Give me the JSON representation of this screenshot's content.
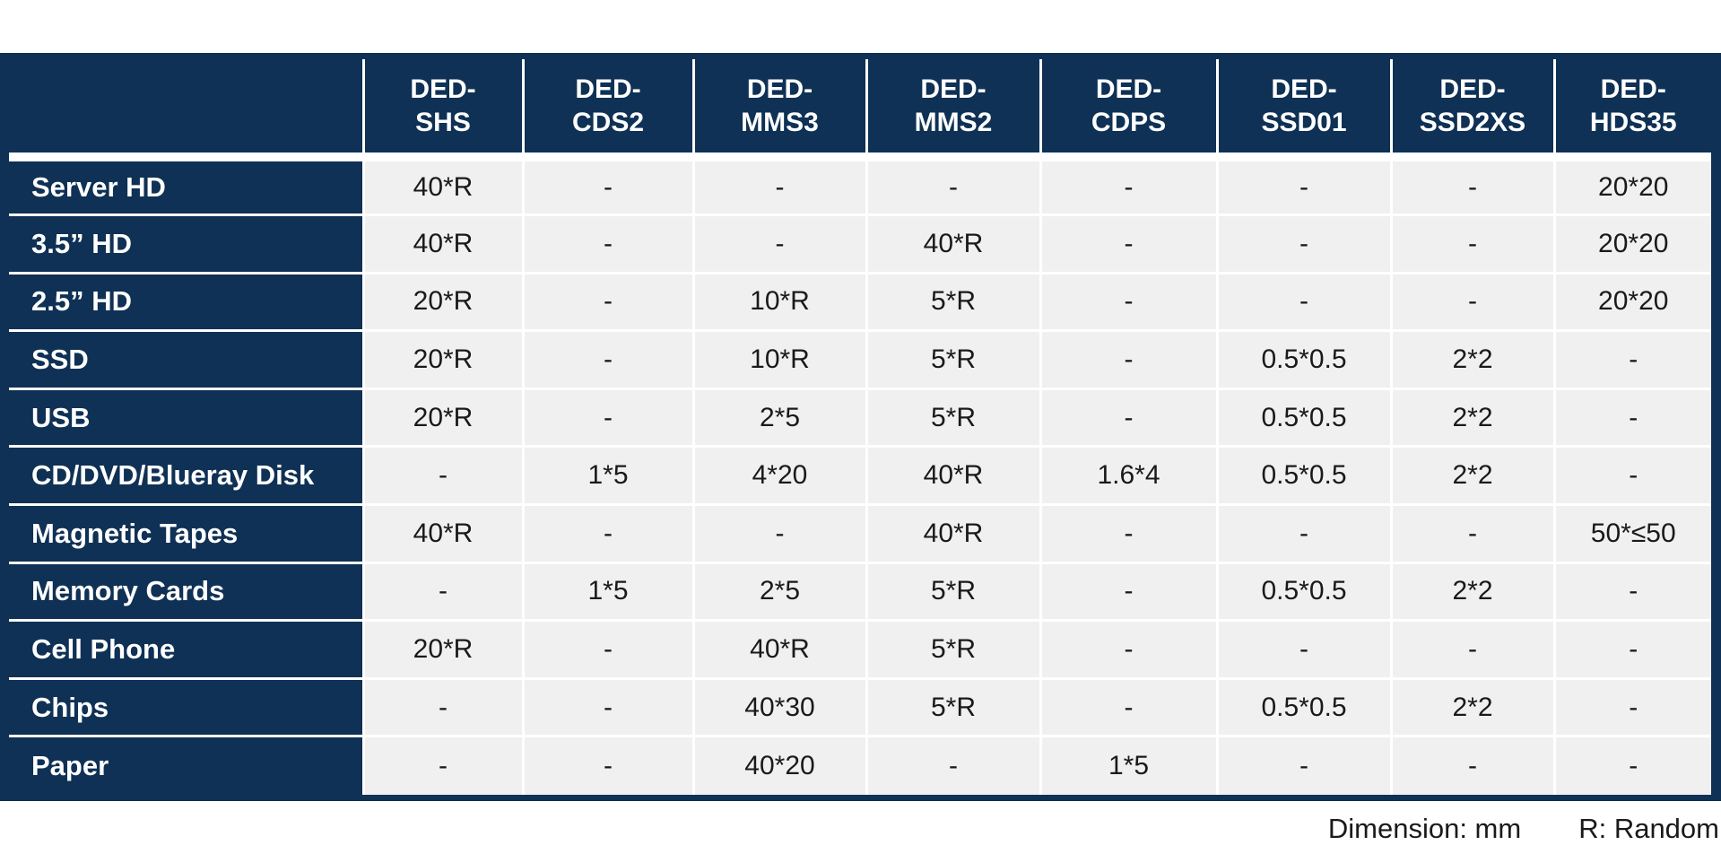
{
  "table": {
    "corner_label": "",
    "columns": [
      "DED-\nSHS",
      "DED-\nCDS2",
      "DED-\nMMS3",
      "DED-\nMMS2",
      "DED-\nCDPS",
      "DED-\nSSD01",
      "DED-\nSSD2XS",
      "DED-\nHDS35"
    ],
    "rows": [
      {
        "label": "Server HD",
        "cells": [
          "40*R",
          "-",
          "-",
          "-",
          "-",
          "-",
          "-",
          "20*20"
        ]
      },
      {
        "label": "3.5” HD",
        "cells": [
          "40*R",
          "-",
          "-",
          "40*R",
          "-",
          "-",
          "-",
          "20*20"
        ]
      },
      {
        "label": "2.5” HD",
        "cells": [
          "20*R",
          "-",
          "10*R",
          "5*R",
          "-",
          "-",
          "-",
          "20*20"
        ]
      },
      {
        "label": "SSD",
        "cells": [
          "20*R",
          "-",
          "10*R",
          "5*R",
          "-",
          "0.5*0.5",
          "2*2",
          "-"
        ]
      },
      {
        "label": "USB",
        "cells": [
          "20*R",
          "-",
          "2*5",
          "5*R",
          "-",
          "0.5*0.5",
          "2*2",
          "-"
        ]
      },
      {
        "label": "CD/DVD/Blueray Disk",
        "cells": [
          "-",
          "1*5",
          "4*20",
          "40*R",
          "1.6*4",
          "0.5*0.5",
          "2*2",
          "-"
        ]
      },
      {
        "label": "Magnetic Tapes",
        "cells": [
          "40*R",
          "-",
          "-",
          "40*R",
          "-",
          "-",
          "-",
          "50*≤50"
        ]
      },
      {
        "label": "Memory Cards",
        "cells": [
          "-",
          "1*5",
          "2*5",
          "5*R",
          "-",
          "0.5*0.5",
          "2*2",
          "-"
        ]
      },
      {
        "label": "Cell Phone",
        "cells": [
          "20*R",
          "-",
          "40*R",
          "5*R",
          "-",
          "-",
          "-",
          "-"
        ]
      },
      {
        "label": "Chips",
        "cells": [
          "-",
          "-",
          "40*30",
          "5*R",
          "-",
          "0.5*0.5",
          "2*2",
          "-"
        ]
      },
      {
        "label": "Paper",
        "cells": [
          "-",
          "-",
          "40*20",
          "-",
          "1*5",
          "-",
          "-",
          "-"
        ]
      }
    ]
  },
  "footnote": {
    "dimension": "Dimension: mm",
    "random": "R: Random"
  },
  "colors": {
    "header_bg": "#0f3155",
    "cell_bg": "#f0f0f0",
    "grid": "#ffffff"
  }
}
